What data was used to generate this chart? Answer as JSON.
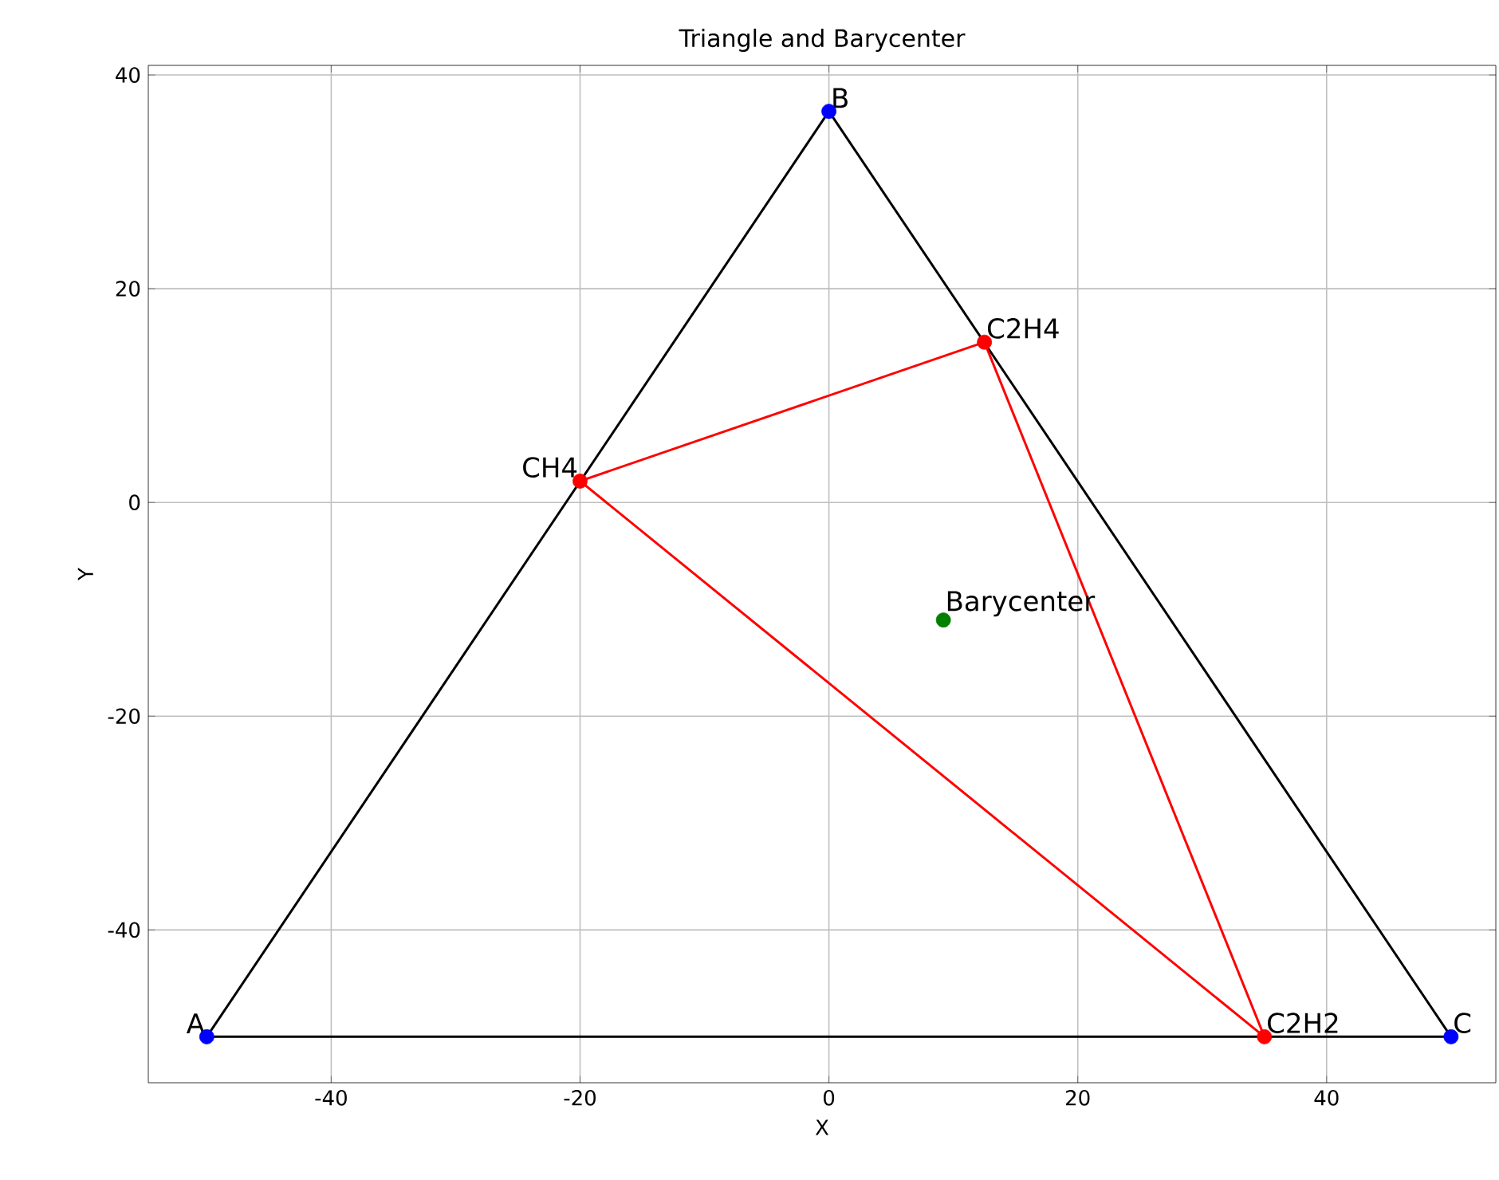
{
  "chart_data": {
    "type": "line",
    "title": "Triangle and Barycenter",
    "xlabel": "X",
    "ylabel": "Y",
    "xlim": [
      -54.7,
      53.6
    ],
    "ylim": [
      -54.3,
      40.9
    ],
    "xticks": [
      -40,
      -20,
      0,
      20,
      40
    ],
    "yticks": [
      -40,
      -20,
      0,
      20,
      40
    ],
    "grid": true,
    "series": [
      {
        "color": "#000000",
        "marker": "none",
        "x": [
          -50,
          0
        ],
        "values": [
          -50,
          36.6
        ]
      },
      {
        "color": "#000000",
        "marker": "none",
        "x": [
          0,
          50
        ],
        "values": [
          36.6,
          -50
        ]
      },
      {
        "color": "#000000",
        "marker": "none",
        "x": [
          -50,
          50
        ],
        "values": [
          -50,
          -50
        ]
      },
      {
        "color": "#ff0000",
        "marker": "none",
        "x": [
          -20,
          12.5
        ],
        "values": [
          2,
          15
        ]
      },
      {
        "color": "#ff0000",
        "marker": "none",
        "x": [
          12.5,
          35
        ],
        "values": [
          15,
          -50
        ]
      },
      {
        "color": "#ff0000",
        "marker": "none",
        "x": [
          -20,
          35
        ],
        "values": [
          2,
          -50
        ]
      },
      {
        "type": "scatter",
        "color": "#0000ff",
        "marker": "circle",
        "x": [
          -50,
          0,
          50
        ],
        "values": [
          -50,
          36.6,
          -50
        ]
      },
      {
        "type": "scatter",
        "color": "#ff0000",
        "marker": "circle",
        "x": [
          -20,
          12.5,
          35
        ],
        "values": [
          2,
          15,
          -50
        ]
      },
      {
        "type": "scatter",
        "color": "#008000",
        "marker": "circle",
        "x": [
          9.2
        ],
        "values": [
          -11
        ]
      }
    ],
    "annotations": [
      {
        "text": "A",
        "x": -50,
        "y": -50
      },
      {
        "text": "B",
        "x": 0,
        "y": 36.6
      },
      {
        "text": "C",
        "x": 50,
        "y": -50
      },
      {
        "text": "CH4",
        "x": -20,
        "y": 2
      },
      {
        "text": "C2H4",
        "x": 12.5,
        "y": 15
      },
      {
        "text": "C2H2",
        "x": 35,
        "y": -50
      },
      {
        "text": "Barycenter",
        "x": 9.2,
        "y": -11
      }
    ]
  }
}
